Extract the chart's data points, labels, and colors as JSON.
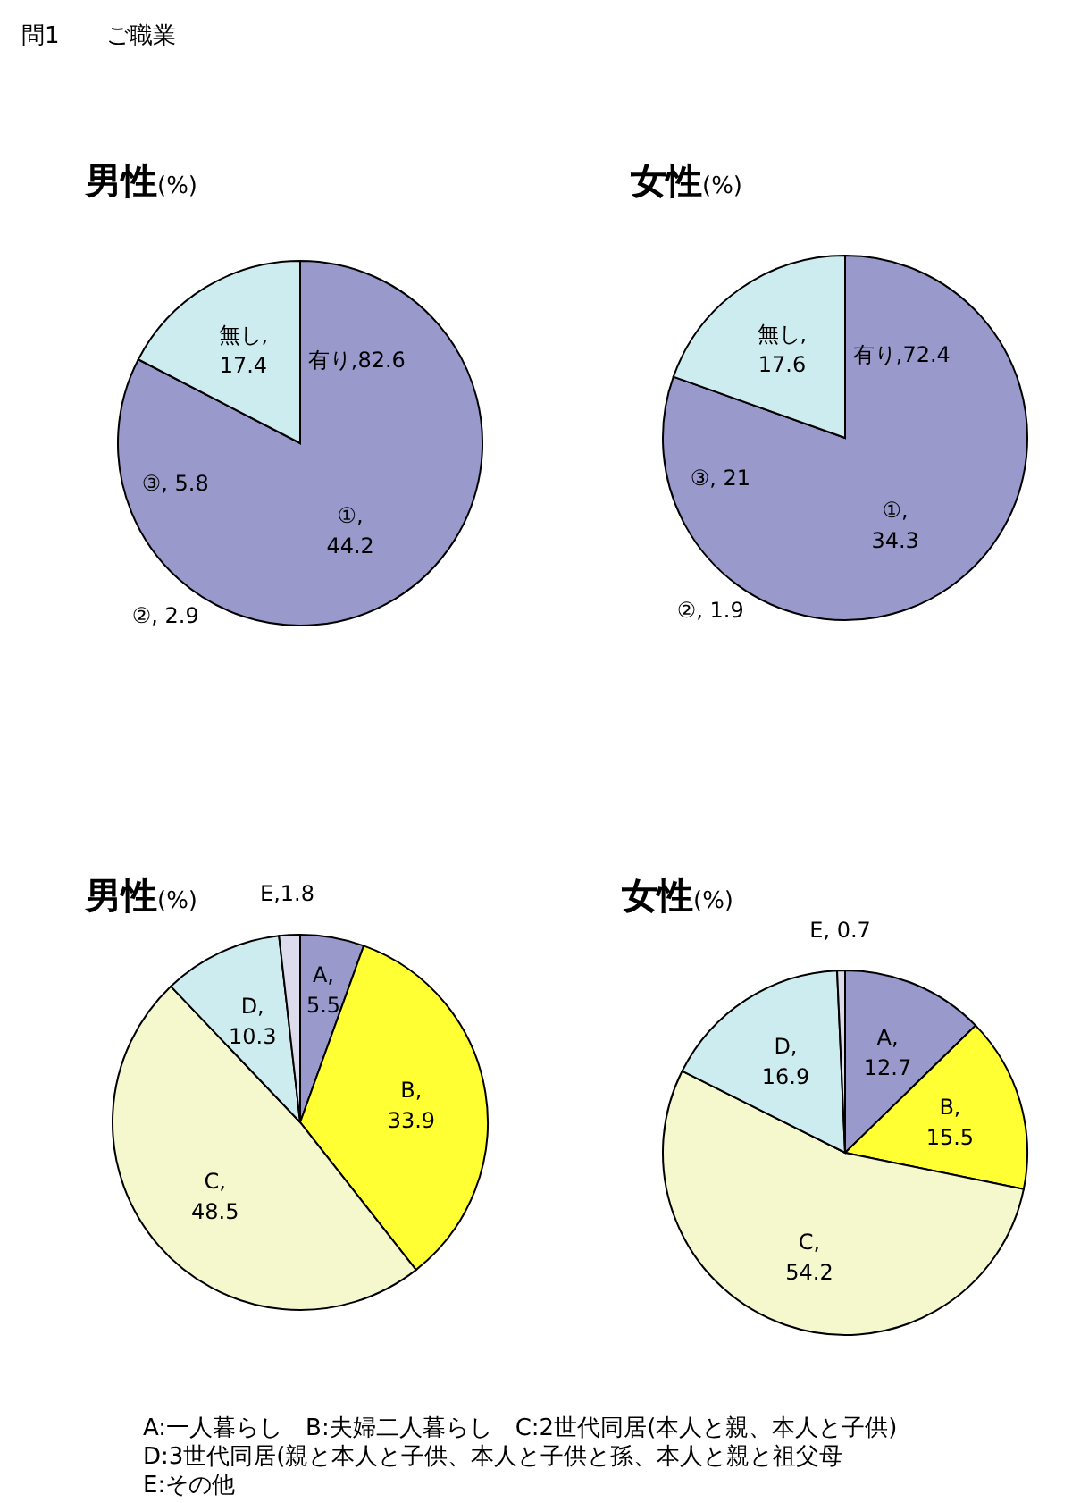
{
  "chart_data": [
    {
      "type": "pie",
      "title": "男性(%)",
      "categories": [
        null,
        null
      ],
      "values": [
        82.6,
        17.4
      ],
      "colors": [
        "#9999cc",
        "#ccecef"
      ],
      "value_labels": [
        "有り,82.6",
        "無し,\n17.4"
      ],
      "annotations": [
        "問1　　ご職業",
        "①,\n44.2",
        "②, 2.9",
        "③, 5.8"
      ]
    },
    {
      "type": "pie",
      "title": "女性(%)",
      "categories": [
        null,
        null
      ],
      "values": [
        72.4,
        17.6
      ],
      "colors": [
        "#9999cc",
        "#ccecef"
      ],
      "value_labels": [
        "有り,72.4",
        "無し,\n17.6"
      ],
      "annotations": [
        "①,\n34.3",
        "②, 1.9",
        "③, 21"
      ]
    },
    {
      "type": "pie",
      "title": "男性(%)",
      "categories": [
        null,
        null,
        null,
        null,
        null
      ],
      "values": [
        5.5,
        33.9,
        48.5,
        10.3,
        1.8
      ],
      "colors": [
        "#9999cc",
        "#ffff33",
        "#f5f7cc",
        "#ccecef",
        "#dcdcec"
      ],
      "value_labels": [
        "A,\n5.5",
        "B,\n33.9",
        "C,\n48.5",
        "D,\n10.3",
        "E,1.8"
      ]
    },
    {
      "type": "pie",
      "title": "女性(%)",
      "categories": [
        null,
        null,
        null,
        null,
        null
      ],
      "values": [
        12.7,
        15.5,
        54.2,
        16.9,
        0.7
      ],
      "colors": [
        "#9999cc",
        "#ffff33",
        "#f5f7cc",
        "#ccecef",
        "#dcdcec"
      ],
      "value_labels": [
        "A,\n12.7",
        "B,\n15.5",
        "C,\n54.2",
        "D,\n16.9",
        "E, 0.7"
      ],
      "annotations": [
        "A:一人暮らし　B:夫婦二人暮らし　C:2世代同居(本人と親、本人と子供)",
        "D:3世代同居(親と本人と子供、本人と子供と孫、本人と親と祖父母",
        "E:その他"
      ]
    }
  ]
}
